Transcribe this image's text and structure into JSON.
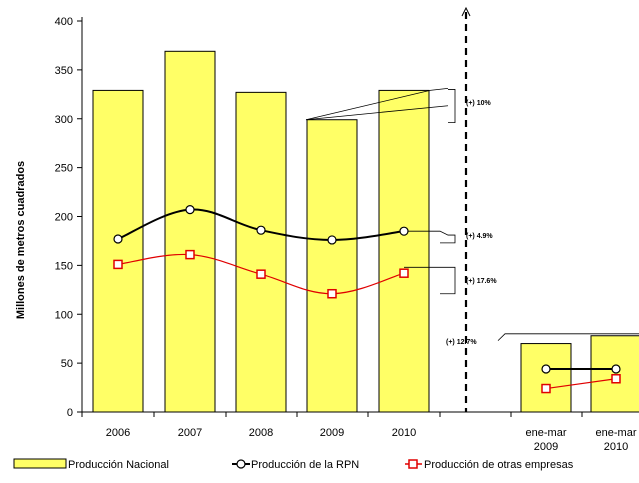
{
  "chart_data": {
    "type": "bar",
    "ylabel": "Millones de metros cuadrados",
    "ylim": [
      0,
      400
    ],
    "yticks": [
      0,
      50,
      100,
      150,
      200,
      250,
      300,
      350,
      400
    ],
    "grid": false,
    "legend_position": "bottom",
    "categories": [
      {
        "label": "2006"
      },
      {
        "label": "2007"
      },
      {
        "label": "2008"
      },
      {
        "label": "2009"
      },
      {
        "label": "2010"
      },
      {
        "line1": "ene-mar",
        "line2": "2009"
      },
      {
        "line1": "ene-mar",
        "line2": "2010"
      }
    ],
    "series": [
      {
        "name": "Producción Nacional",
        "kind": "bar",
        "color": "#ffff66",
        "values": [
          329,
          369,
          327,
          299,
          329,
          70,
          78
        ]
      },
      {
        "name": "Producción de la RPN",
        "kind": "line",
        "color": "#000000",
        "marker": "circle",
        "values": [
          177,
          207,
          186,
          176,
          185,
          44,
          44
        ]
      },
      {
        "name": "Producción de otras empresas",
        "kind": "line",
        "color": "#ff0000",
        "marker": "square",
        "values": [
          151,
          161,
          141,
          121,
          142,
          24,
          34
        ]
      }
    ],
    "annotations": [
      {
        "text": "(+) 10%"
      },
      {
        "text": "(+) 4.9%"
      },
      {
        "text": "(+) 17.6%"
      },
      {
        "text": "(+) 12.7%"
      }
    ]
  }
}
